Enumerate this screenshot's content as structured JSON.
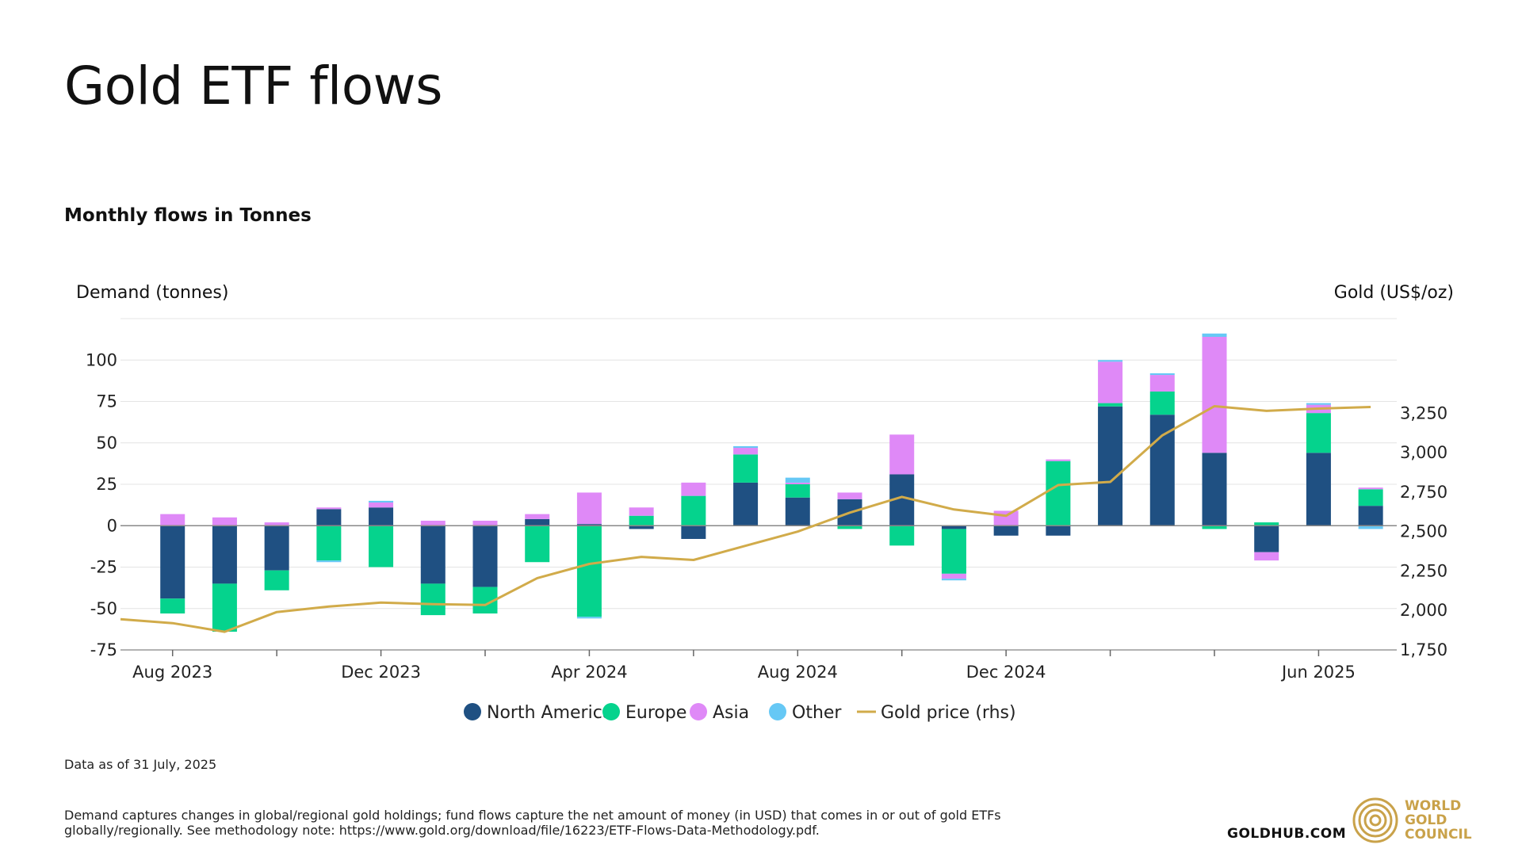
{
  "header": {
    "title": "Gold ETF flows",
    "subtitle": "Monthly flows in Tonnes"
  },
  "chart_data": {
    "type": "bar",
    "stacked": true,
    "ylabel": "Demand (tonnes)",
    "y2label": "Gold (US$/oz)",
    "ylim": [
      -75,
      125
    ],
    "y2lim": [
      1750,
      3850
    ],
    "yticks": [
      -75,
      -50,
      -25,
      0,
      25,
      50,
      75,
      100
    ],
    "yticklabels": [
      "-75",
      "-50",
      "-25",
      "0",
      "25",
      "50",
      "75",
      "100"
    ],
    "y2ticks": [
      1750,
      2000,
      2250,
      2500,
      2750,
      3000,
      3250
    ],
    "y2ticklabels": [
      "1,750",
      "2,000",
      "2,250",
      "2,500",
      "2,750",
      "3,000",
      "3,250"
    ],
    "categories": [
      "Aug 2023",
      "Sep 2023",
      "Oct 2023",
      "Nov 2023",
      "Dec 2023",
      "Jan 2024",
      "Feb 2024",
      "Mar 2024",
      "Apr 2024",
      "May 2024",
      "Jun 2024",
      "Jul 2024",
      "Aug 2024",
      "Sep 2024",
      "Oct 2024",
      "Nov 2024",
      "Dec 2024",
      "Jan 2025",
      "Feb 2025",
      "Mar 2025",
      "Apr 2025",
      "May 2025",
      "Jun 2025",
      "Jul 2025"
    ],
    "xtick_labels": [
      {
        "index": 0,
        "text": "Aug 2023"
      },
      {
        "index": 4,
        "text": "Dec 2023"
      },
      {
        "index": 8,
        "text": "Apr 2024"
      },
      {
        "index": 12,
        "text": "Aug 2024"
      },
      {
        "index": 16,
        "text": "Dec 2024"
      },
      {
        "index": 22,
        "text": "Jun 2025"
      }
    ],
    "series": [
      {
        "name": "North America",
        "color": "#1f5082",
        "values": [
          -44,
          -35,
          -27,
          10,
          11,
          -35,
          -37,
          4,
          1,
          -2,
          -8,
          26,
          17,
          16,
          31,
          -2,
          -6,
          -6,
          72,
          67,
          44,
          -16,
          44,
          12
        ]
      },
      {
        "name": "Europe",
        "color": "#05d38d",
        "values": [
          -9,
          -29,
          -12,
          -21,
          -25,
          -19,
          -16,
          -22,
          -55,
          6,
          18,
          17,
          8,
          -2,
          -12,
          -27,
          0,
          39,
          2,
          14,
          -2,
          2,
          24,
          10
        ]
      },
      {
        "name": "Asia",
        "color": "#df89f7",
        "values": [
          7,
          5,
          2,
          1,
          3,
          3,
          3,
          3,
          19,
          5,
          8,
          4,
          1,
          4,
          24,
          -3,
          9,
          1,
          25,
          10,
          70,
          -5,
          5,
          1
        ]
      },
      {
        "name": "Other",
        "color": "#66c8f5",
        "values": [
          0,
          0,
          0,
          -1,
          1,
          0,
          0,
          0,
          -1,
          0,
          0,
          1,
          3,
          0,
          0,
          -1,
          0,
          0,
          1,
          1,
          2,
          0,
          1,
          -2
        ]
      }
    ],
    "line_series": {
      "name": "Gold price (rhs)",
      "color": "#d1ab4a",
      "axis": "right",
      "x": [
        "Jul 2023",
        "Aug 2023",
        "Sep 2023",
        "Oct 2023",
        "Nov 2023",
        "Dec 2023",
        "Jan 2024",
        "Feb 2024",
        "Mar 2024",
        "Apr 2024",
        "May 2024",
        "Jun 2024",
        "Jul 2024",
        "Aug 2024",
        "Sep 2024",
        "Oct 2024",
        "Nov 2024",
        "Dec 2024",
        "Jan 2025",
        "Feb 2025",
        "Mar 2025",
        "Apr 2025",
        "May 2025",
        "Jun 2025",
        "Jul 2025"
      ],
      "values": [
        1945,
        1920,
        1865,
        1990,
        2025,
        2050,
        2040,
        2035,
        2205,
        2295,
        2340,
        2320,
        2410,
        2500,
        2620,
        2720,
        2640,
        2600,
        2795,
        2815,
        3110,
        3295,
        3265,
        3280,
        3290
      ]
    },
    "legend": {
      "position": "bottom",
      "entries": [
        "North America",
        "Europe",
        "Asia",
        "Other",
        "Gold price (rhs)"
      ]
    }
  },
  "footer": {
    "data_note": "Data as of 31 July, 2025",
    "desc_line1": "Demand captures changes in global/regional gold holdings; fund flows capture the net amount of money (in USD) that comes in or out of gold ETFs",
    "desc_line2": "globally/regionally. See methodology note: https://www.gold.org/download/file/16223/ETF-Flows-Data-Methodology.pdf.",
    "site": "GOLDHUB.COM",
    "logo_line1": "WORLD",
    "logo_line2": "GOLD",
    "logo_line3": "COUNCIL"
  },
  "colors": {
    "logo": "#c9a24a",
    "grid": "#e4e4e4",
    "axis": "#999999"
  }
}
